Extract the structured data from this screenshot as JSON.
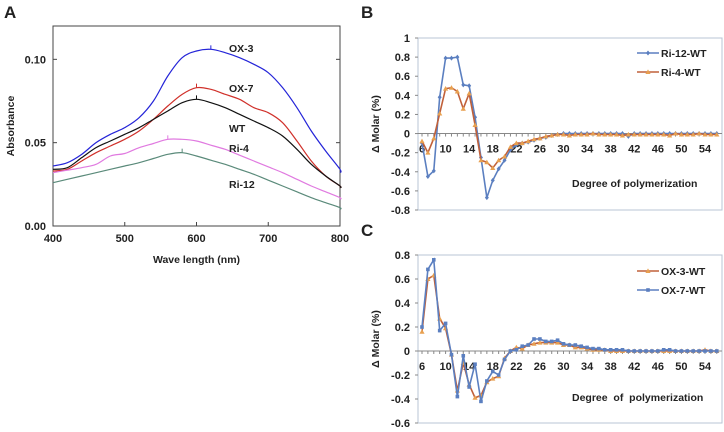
{
  "chart_data": [
    {
      "panel": "A",
      "type": "line",
      "xlabel": "Wave length (nm)",
      "ylabel": "Absorbance",
      "xlim": [
        400,
        810
      ],
      "ylim": [
        0,
        0.12
      ],
      "xticks": [
        "400",
        "500",
        "600",
        "700",
        "800"
      ],
      "yticks": [
        "0.00",
        "0.05",
        "0.10"
      ],
      "grid": false,
      "legend": "inline labels at the right end of each curve",
      "x": [
        400,
        420,
        440,
        460,
        480,
        500,
        520,
        540,
        560,
        580,
        600,
        620,
        640,
        660,
        680,
        700,
        720,
        740,
        760,
        780,
        800,
        810
      ],
      "series": [
        {
          "name": "OX-3",
          "color": "#2424d8",
          "values": [
            0.036,
            0.038,
            0.043,
            0.05,
            0.055,
            0.059,
            0.065,
            0.075,
            0.09,
            0.101,
            0.105,
            0.106,
            0.104,
            0.101,
            0.097,
            0.092,
            0.083,
            0.071,
            0.057,
            0.045,
            0.034,
            0.032
          ]
        },
        {
          "name": "OX-7",
          "color": "#d0302a",
          "values": [
            0.033,
            0.034,
            0.039,
            0.044,
            0.048,
            0.052,
            0.057,
            0.064,
            0.072,
            0.079,
            0.083,
            0.082,
            0.079,
            0.076,
            0.071,
            0.068,
            0.062,
            0.051,
            0.039,
            0.03,
            0.024,
            0.023
          ]
        },
        {
          "name": "WT",
          "color": "#111111",
          "values": [
            0.034,
            0.035,
            0.041,
            0.047,
            0.051,
            0.055,
            0.059,
            0.064,
            0.069,
            0.074,
            0.076,
            0.074,
            0.071,
            0.067,
            0.063,
            0.059,
            0.054,
            0.046,
            0.037,
            0.03,
            0.024,
            0.023
          ]
        },
        {
          "name": "Ri-4",
          "color": "#e07ae0",
          "values": [
            0.032,
            0.0335,
            0.035,
            0.037,
            0.042,
            0.0435,
            0.047,
            0.0495,
            0.052,
            0.052,
            0.051,
            0.0485,
            0.046,
            0.0425,
            0.039,
            0.0355,
            0.032,
            0.028,
            0.024,
            0.0205,
            0.017,
            0.016
          ]
        },
        {
          "name": "Ri-12",
          "color": "#5a8a7a",
          "values": [
            0.026,
            0.028,
            0.03,
            0.032,
            0.034,
            0.036,
            0.038,
            0.0405,
            0.043,
            0.044,
            0.042,
            0.0395,
            0.037,
            0.034,
            0.031,
            0.0275,
            0.024,
            0.0205,
            0.017,
            0.014,
            0.011,
            0.01
          ]
        }
      ]
    },
    {
      "panel": "B",
      "type": "line",
      "xlabel": "Degree of polymerization",
      "ylabel": "Δ Molar (%)",
      "xlim": [
        5.3,
        57
      ],
      "ylim": [
        -0.8,
        1
      ],
      "xticks": [
        "6",
        "10",
        "14",
        "18",
        "22",
        "26",
        "30",
        "34",
        "38",
        "42",
        "46",
        "50",
        "54"
      ],
      "yticks": [
        "-0.8",
        "-0.6",
        "-0.4",
        "-0.2",
        "0",
        "0.2",
        "0.4",
        "0.6",
        "0.8",
        "1"
      ],
      "grid": false,
      "legend": "top-right",
      "x_start": 6,
      "series": [
        {
          "name": "Ri-12-WT",
          "color": "#5b7fc0",
          "marker": "diamond",
          "values": [
            -0.1,
            -0.45,
            -0.39,
            0.38,
            0.79,
            0.79,
            0.8,
            0.51,
            0.5,
            0.17,
            -0.25,
            -0.67,
            -0.49,
            -0.37,
            -0.28,
            -0.17,
            -0.12,
            -0.1,
            -0.09,
            -0.07,
            -0.05,
            -0.04,
            -0.02,
            -0.01,
            0,
            0,
            0,
            0,
            0,
            0,
            0,
            0,
            0,
            0,
            0,
            -0.03,
            0,
            0,
            0,
            0,
            0,
            0,
            0,
            0,
            0,
            0,
            0,
            0,
            0,
            0,
            0
          ]
        },
        {
          "name": "Ri-4-WT",
          "color": "#c0603a",
          "marker": "triangle",
          "values": [
            -0.08,
            -0.2,
            -0.05,
            0.21,
            0.47,
            0.48,
            0.44,
            0.26,
            0.42,
            0.09,
            -0.28,
            -0.3,
            -0.36,
            -0.28,
            -0.24,
            -0.14,
            -0.1,
            -0.1,
            -0.08,
            -0.06,
            -0.05,
            -0.03,
            -0.02,
            -0.01,
            -0.01,
            -0.02,
            -0.01,
            -0.01,
            -0.01,
            0,
            -0.01,
            -0.01,
            -0.01,
            -0.01,
            -0.02,
            -0.01,
            -0.01,
            -0.01,
            -0.01,
            -0.01,
            -0.01,
            -0.01,
            -0.02,
            0,
            -0.01,
            -0.01,
            -0.01,
            0,
            -0.01,
            -0.01,
            -0.01
          ]
        }
      ]
    },
    {
      "panel": "C",
      "type": "line",
      "xlabel": "Degree  of  polymerization",
      "ylabel": "Δ Molar (%)",
      "xlim": [
        5.3,
        57
      ],
      "ylim": [
        -0.6,
        0.8
      ],
      "xticks": [
        "6",
        "10",
        "14",
        "18",
        "22",
        "26",
        "30",
        "34",
        "38",
        "42",
        "46",
        "50",
        "54"
      ],
      "yticks": [
        "-0.6",
        "-0.4",
        "-0.2",
        "0",
        "0.2",
        "0.4",
        "0.6",
        "0.8"
      ],
      "grid": false,
      "legend": "top-right",
      "x_start": 6,
      "series": [
        {
          "name": "OX-3-WT",
          "color": "#c0603a",
          "marker": "triangle",
          "values": [
            0.16,
            0.6,
            0.63,
            0.27,
            0.19,
            -0.03,
            -0.33,
            -0.1,
            -0.28,
            -0.39,
            -0.37,
            -0.26,
            -0.23,
            -0.21,
            -0.06,
            0,
            0.03,
            0.02,
            0.05,
            0.06,
            0.07,
            0.07,
            0.07,
            0.07,
            0.05,
            0.05,
            0.03,
            0.03,
            0.02,
            0.01,
            0.01,
            0.01,
            0,
            0,
            0,
            0,
            0,
            0,
            0,
            0,
            0,
            0,
            0,
            0,
            0,
            0,
            0,
            0,
            0.01,
            0,
            0
          ]
        },
        {
          "name": "OX-7-WT",
          "color": "#5b7fc0",
          "marker": "square",
          "values": [
            0.2,
            0.68,
            0.76,
            0.17,
            0.23,
            -0.03,
            -0.38,
            -0.04,
            -0.3,
            -0.11,
            -0.42,
            -0.25,
            -0.17,
            -0.2,
            -0.07,
            0,
            0.01,
            0.04,
            0.05,
            0.1,
            0.1,
            0.08,
            0.08,
            0.09,
            0.06,
            0.05,
            0.05,
            0.04,
            0.03,
            0.02,
            0.02,
            0.01,
            0.01,
            0.01,
            0.01,
            0,
            0,
            0,
            0,
            0,
            0,
            0.01,
            0.01,
            0,
            0,
            0,
            0,
            0,
            0,
            0,
            0
          ]
        }
      ]
    }
  ]
}
